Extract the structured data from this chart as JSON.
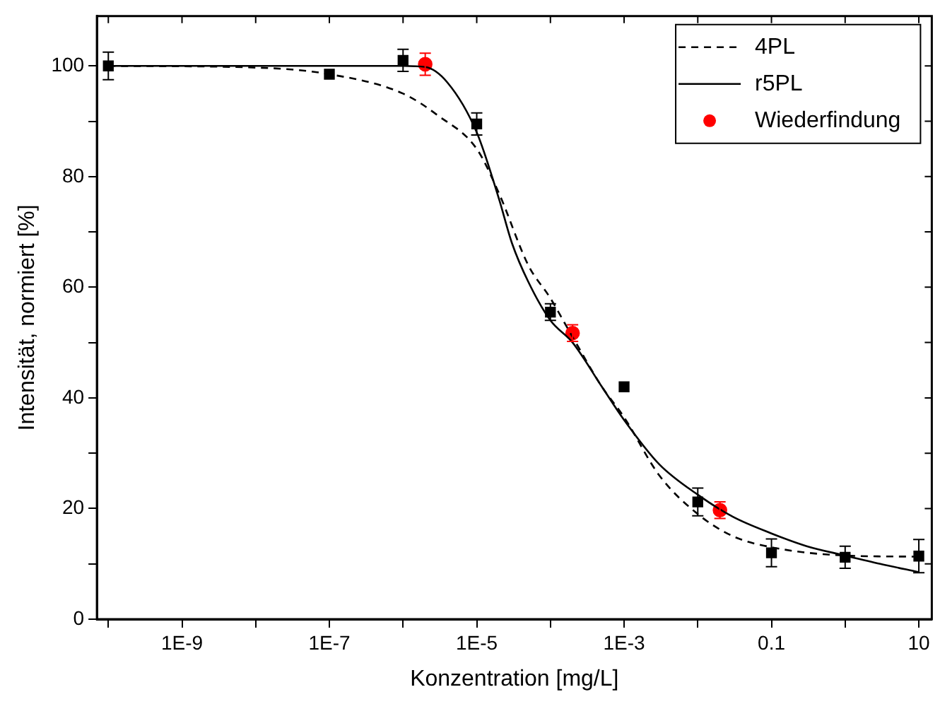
{
  "chart_data": {
    "type": "scatter",
    "xlabel": "Konzentration [mg/L]",
    "ylabel": "Intensität, normiert [%]",
    "log": "x",
    "grid": false,
    "legend": "top right",
    "xlim": [
      7e-11,
      15
    ],
    "ylim": [
      0,
      109
    ],
    "xticks": [
      {
        "value": 1e-10,
        "label": null
      },
      {
        "value": 1e-09,
        "label": "1E-9"
      },
      {
        "value": 1e-08,
        "label": null
      },
      {
        "value": 1e-07,
        "label": "1E-7"
      },
      {
        "value": 1e-06,
        "label": null
      },
      {
        "value": 1e-05,
        "label": "1E-5"
      },
      {
        "value": 0.0001,
        "label": null
      },
      {
        "value": 0.001,
        "label": "1E-3"
      },
      {
        "value": 0.01,
        "label": null
      },
      {
        "value": 0.1,
        "label": "0.1"
      },
      {
        "value": 1,
        "label": null
      },
      {
        "value": 10,
        "label": "10"
      }
    ],
    "yticks": [
      0,
      {
        "value": 10,
        "label": null
      },
      20,
      {
        "value": 30,
        "label": null
      },
      40,
      {
        "value": 50,
        "label": null
      },
      60,
      {
        "value": 70,
        "label": null
      },
      80,
      {
        "value": 90,
        "label": null
      },
      100
    ],
    "series": [
      {
        "name": "4PL",
        "type": "line",
        "color": "#000000",
        "line_style": "dashed",
        "marker": "none",
        "x": [
          1e-10,
          1e-08,
          1e-07,
          1e-06,
          3e-06,
          1e-05,
          2e-05,
          5e-05,
          0.0001,
          0.0002,
          0.0005,
          0.001,
          0.003,
          0.01,
          0.03,
          0.1,
          1,
          10
        ],
        "values": [
          100,
          99.7,
          98.5,
          95,
          91,
          85,
          77,
          64,
          58,
          51,
          42,
          36.5,
          26,
          19,
          15,
          13,
          11.5,
          11.3
        ]
      },
      {
        "name": "r5PL",
        "type": "line",
        "color": "#000000",
        "line_style": "solid",
        "marker": "none",
        "x": [
          1e-10,
          1e-06,
          2e-06,
          4e-06,
          1e-05,
          2e-05,
          3e-05,
          5e-05,
          0.0001,
          0.0002,
          0.0005,
          0.001,
          0.003,
          0.01,
          0.03,
          0.1,
          0.3,
          1,
          3,
          10
        ],
        "values": [
          100,
          100,
          99.8,
          97,
          88,
          76,
          68,
          61,
          54,
          50,
          42,
          36,
          28,
          22.5,
          18.5,
          15.5,
          13.2,
          11.5,
          10,
          8.5
        ]
      },
      {
        "color": "#000000",
        "marker": "square",
        "x": [
          1e-10,
          1e-07,
          1e-06,
          1e-05,
          0.0001,
          0.001,
          0.01,
          0.1,
          1,
          10
        ],
        "values": [
          100,
          98.5,
          101,
          89.5,
          55.5,
          42,
          21.2,
          12,
          11.2,
          11.4
        ],
        "errors": [
          2.5,
          null,
          2,
          2,
          1.5,
          null,
          2.5,
          2.5,
          2,
          3
        ]
      },
      {
        "name": "Wiederfindung",
        "color": "#ff0000",
        "marker": "circle",
        "x": [
          2e-06,
          0.0002,
          0.02
        ],
        "values": [
          100.3,
          51.7,
          19.7
        ],
        "errors": [
          2,
          1.5,
          1.5
        ]
      }
    ]
  }
}
